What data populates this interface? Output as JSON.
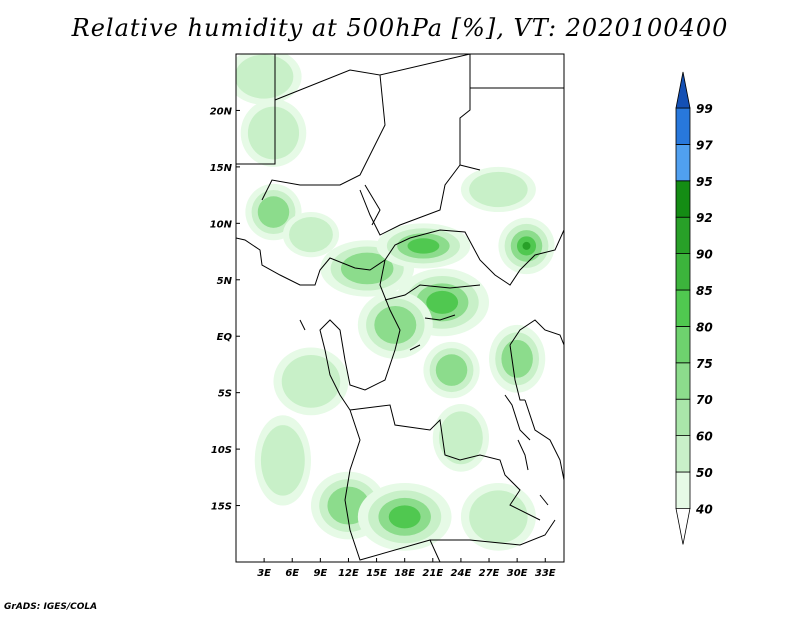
{
  "title": "Relative humidity at 500hPa [%], VT: 2020100400",
  "credit": "GrADS: IGES/COLA",
  "map": {
    "lon_range": [
      0,
      35
    ],
    "lat_range": [
      -20,
      25
    ],
    "x_ticks": [
      {
        "value": 3,
        "label": "3E"
      },
      {
        "value": 6,
        "label": "6E"
      },
      {
        "value": 9,
        "label": "9E"
      },
      {
        "value": 12,
        "label": "12E"
      },
      {
        "value": 15,
        "label": "15E"
      },
      {
        "value": 18,
        "label": "18E"
      },
      {
        "value": 21,
        "label": "21E"
      },
      {
        "value": 24,
        "label": "24E"
      },
      {
        "value": 27,
        "label": "27E"
      },
      {
        "value": 30,
        "label": "30E"
      },
      {
        "value": 33,
        "label": "33E"
      }
    ],
    "y_ticks": [
      {
        "value": 20,
        "label": "20N"
      },
      {
        "value": 15,
        "label": "15N"
      },
      {
        "value": 10,
        "label": "10N"
      },
      {
        "value": 5,
        "label": "5N"
      },
      {
        "value": 0,
        "label": "EQ"
      },
      {
        "value": -5,
        "label": "5S"
      },
      {
        "value": -10,
        "label": "10S"
      },
      {
        "value": -15,
        "label": "15S"
      }
    ],
    "humid_regions": [
      {
        "lon": 3,
        "lat": 23,
        "rlon": 4,
        "rlat": 2.5,
        "level": 1
      },
      {
        "lon": 4,
        "lat": 18,
        "rlon": 3.5,
        "rlat": 3,
        "level": 1
      },
      {
        "lon": 4,
        "lat": 11,
        "rlon": 3,
        "rlat": 2.5,
        "level": 2
      },
      {
        "lon": 8,
        "lat": 9,
        "rlon": 3,
        "rlat": 2,
        "level": 1
      },
      {
        "lon": 14,
        "lat": 6,
        "rlon": 5,
        "rlat": 2.5,
        "level": 2
      },
      {
        "lon": 20,
        "lat": 8,
        "rlon": 5,
        "rlat": 2,
        "level": 3
      },
      {
        "lon": 28,
        "lat": 13,
        "rlon": 4,
        "rlat": 2,
        "level": 1
      },
      {
        "lon": 31,
        "lat": 8,
        "rlon": 3,
        "rlat": 2.5,
        "level": 4
      },
      {
        "lon": 22,
        "lat": 3,
        "rlon": 5,
        "rlat": 3,
        "level": 3
      },
      {
        "lon": 17,
        "lat": 1,
        "rlon": 4,
        "rlat": 3,
        "level": 2
      },
      {
        "lon": 23,
        "lat": -3,
        "rlon": 3,
        "rlat": 2.5,
        "level": 2
      },
      {
        "lon": 30,
        "lat": -2,
        "rlon": 3,
        "rlat": 3,
        "level": 2
      },
      {
        "lon": 8,
        "lat": -4,
        "rlon": 4,
        "rlat": 3,
        "level": 1
      },
      {
        "lon": 5,
        "lat": -11,
        "rlon": 3,
        "rlat": 4,
        "level": 1
      },
      {
        "lon": 24,
        "lat": -9,
        "rlon": 3,
        "rlat": 3,
        "level": 1
      },
      {
        "lon": 12,
        "lat": -15,
        "rlon": 4,
        "rlat": 3,
        "level": 2
      },
      {
        "lon": 18,
        "lat": -16,
        "rlon": 5,
        "rlat": 3,
        "level": 3
      },
      {
        "lon": 28,
        "lat": -16,
        "rlon": 4,
        "rlat": 3,
        "level": 1
      }
    ]
  },
  "colorbar": {
    "levels": [
      {
        "label": "40",
        "color": "#e6fae6"
      },
      {
        "label": "50",
        "color": "#c8f0c8"
      },
      {
        "label": "60",
        "color": "#aae6aa"
      },
      {
        "label": "70",
        "color": "#8cdc8c"
      },
      {
        "label": "75",
        "color": "#6ed26e"
      },
      {
        "label": "80",
        "color": "#50c850"
      },
      {
        "label": "85",
        "color": "#3cb43c"
      },
      {
        "label": "90",
        "color": "#28a028"
      },
      {
        "label": "92",
        "color": "#148c14"
      },
      {
        "label": "95",
        "color": "#50a0f0"
      },
      {
        "label": "97",
        "color": "#2878dc"
      },
      {
        "label": "99",
        "color": "#1450b4"
      }
    ],
    "bottom_color": "#ffffff",
    "top_color": "#1450b4"
  }
}
